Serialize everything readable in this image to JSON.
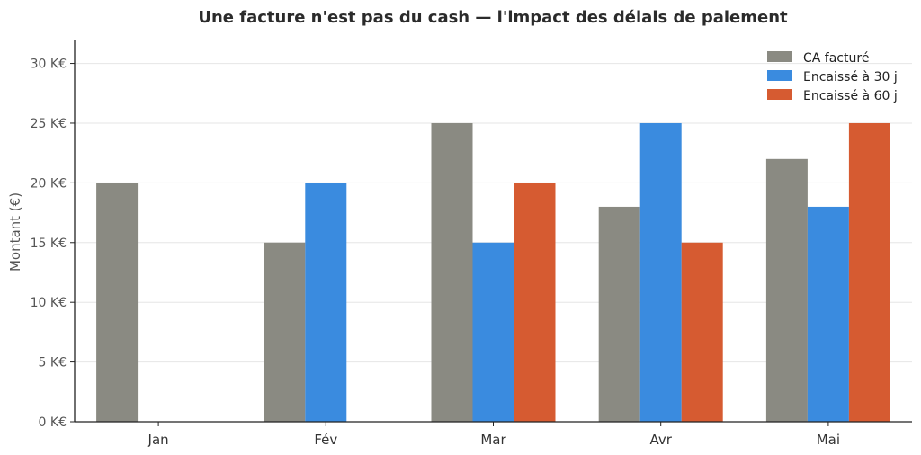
{
  "chart_data": {
    "type": "bar",
    "title": "Une facture n'est pas du cash — l'impact des délais de paiement",
    "xlabel": "",
    "ylabel": "Montant (€)",
    "categories": [
      "Jan",
      "Fév",
      "Mar",
      "Avr",
      "Mai"
    ],
    "ylim": [
      0,
      32000
    ],
    "yticks": [
      0,
      5000,
      10000,
      15000,
      20000,
      25000,
      30000
    ],
    "ytick_labels": [
      "0 K€",
      "5 K€",
      "10 K€",
      "15 K€",
      "20 K€",
      "25 K€",
      "30 K€"
    ],
    "grid": true,
    "legend_position": "top-right",
    "series": [
      {
        "name": "CA facturé",
        "color": "#8a8a82",
        "values": [
          20000,
          15000,
          25000,
          18000,
          22000
        ]
      },
      {
        "name": "Encaissé à 30 j",
        "color": "#3a8bdf",
        "values": [
          0,
          20000,
          15000,
          25000,
          18000
        ]
      },
      {
        "name": "Encaissé à 60 j",
        "color": "#d65b31",
        "values": [
          0,
          0,
          20000,
          15000,
          25000
        ]
      }
    ]
  }
}
